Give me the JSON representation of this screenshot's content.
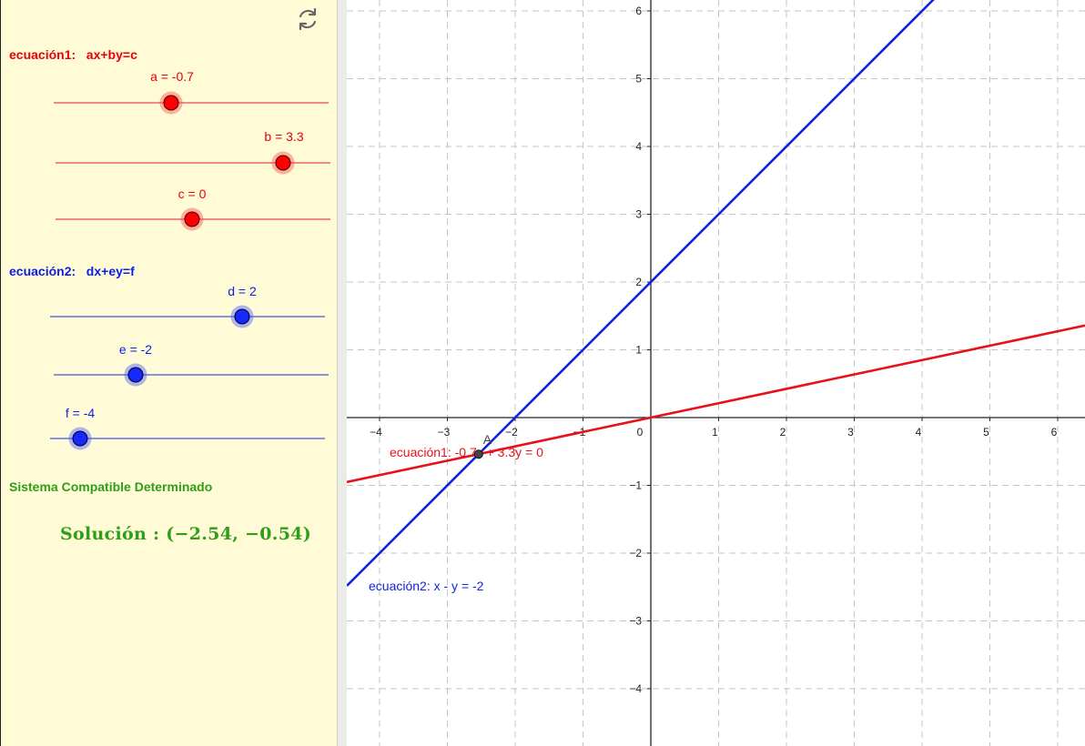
{
  "toolbar": {
    "reset_icon": "refresh-icon"
  },
  "equation1": {
    "title": "ecuación1:   ax+by=c",
    "color": "#e8000b",
    "sliders": [
      {
        "name": "a",
        "label": "a = -0.7",
        "value": -0.7,
        "min": -5,
        "max": 5
      },
      {
        "name": "b",
        "label": "b = 3.3",
        "value": 3.3,
        "min": -5,
        "max": 5
      },
      {
        "name": "c",
        "label": "c = 0",
        "value": 0,
        "min": -5,
        "max": 5
      }
    ]
  },
  "equation2": {
    "title": "ecuación2:   dx+ey=f",
    "color": "#0a1ee6",
    "sliders": [
      {
        "name": "d",
        "label": "d = 2",
        "value": 2,
        "min": -5,
        "max": 5
      },
      {
        "name": "e",
        "label": "e = -2",
        "value": -2,
        "min": -5,
        "max": 5
      },
      {
        "name": "f",
        "label": "f = -4",
        "value": -4,
        "min": -5,
        "max": 5
      }
    ]
  },
  "status": {
    "text": "Sistema Compatible Determinado",
    "color": "#2e9e18"
  },
  "solution": {
    "text": "Solución : (−2.54, −0.54)",
    "x": -2.54,
    "y": -0.54
  },
  "graph": {
    "x_ticks": [
      "−4",
      "−3",
      "−2",
      "−1",
      "0",
      "1",
      "2",
      "3",
      "4",
      "5",
      "6"
    ],
    "y_ticks": [
      "−4",
      "−3",
      "−2",
      "−1",
      "1",
      "2",
      "3",
      "4",
      "5",
      "6"
    ],
    "line1": {
      "label": "ecuación1: -0.7x + 3.3y = 0",
      "a": -0.7,
      "b": 3.3,
      "c": 0,
      "color": "#e8101a"
    },
    "line2": {
      "label": "ecuación2: x - y = -2",
      "d": 1,
      "e": -1,
      "f": -2,
      "color": "#1024e0"
    },
    "point": {
      "label": "A",
      "x": -2.54,
      "y": -0.54
    }
  }
}
